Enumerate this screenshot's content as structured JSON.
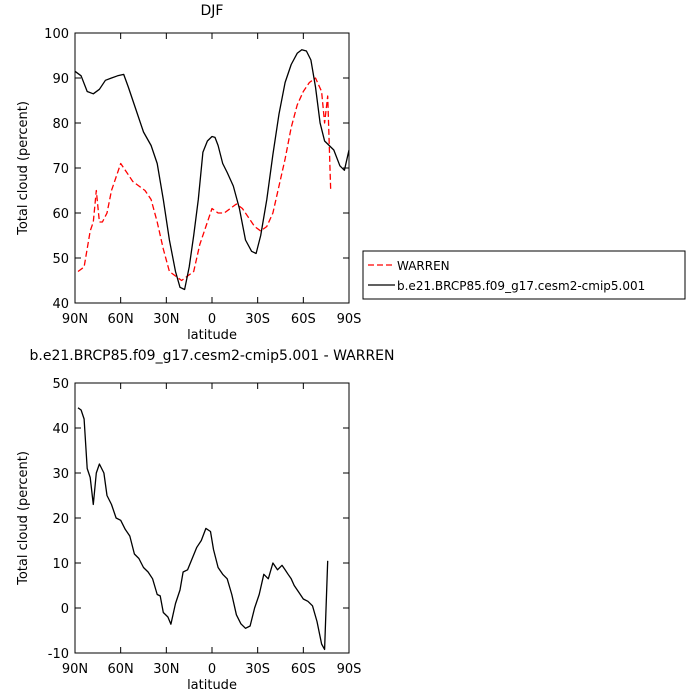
{
  "chart_data": [
    {
      "type": "line",
      "title": "DJF",
      "xlabel": "latitude",
      "ylabel": "Total cloud (percent)",
      "xlim": [
        90,
        -90
      ],
      "ylim": [
        40,
        100
      ],
      "xticks": [
        90,
        60,
        30,
        0,
        -30,
        -60,
        -90
      ],
      "xtick_labels": [
        "90N",
        "60N",
        "30N",
        "0",
        "30S",
        "60S",
        "90S"
      ],
      "yticks": [
        40,
        50,
        60,
        70,
        80,
        90,
        100
      ],
      "ytick_labels": [
        "40",
        "50",
        "60",
        "70",
        "80",
        "90",
        "100"
      ],
      "legend": "right",
      "grid": false,
      "series": [
        {
          "name": "WARREN",
          "color": "#ff0000",
          "dash": "dashed",
          "x": [
            88,
            84,
            80,
            78,
            76,
            74,
            72,
            69,
            66,
            63,
            60,
            56,
            52,
            48,
            44,
            40,
            36,
            32,
            28,
            24,
            20,
            16,
            12,
            8,
            4,
            0,
            -4,
            -8,
            -12,
            -16,
            -20,
            -24,
            -28,
            -32,
            -36,
            -40,
            -44,
            -48,
            -52,
            -56,
            -60,
            -64,
            -68,
            -72,
            -74,
            -76,
            -78
          ],
          "y": [
            47,
            48,
            56,
            58,
            65,
            58,
            58,
            60,
            65,
            68,
            71,
            69,
            67,
            66,
            65,
            63,
            58,
            52,
            47,
            46,
            45,
            46,
            47,
            53,
            57,
            61,
            60,
            60,
            61,
            62,
            61,
            59,
            57,
            56,
            57,
            60,
            66,
            72,
            79,
            84,
            87,
            89,
            90,
            87,
            80,
            86,
            65
          ]
        },
        {
          "name": "b.e21.BRCP85.f09_g17.cesm2-cmip5.001",
          "color": "#000000",
          "dash": "solid",
          "x": [
            90,
            86,
            82,
            78,
            74,
            70,
            66,
            62,
            58,
            55,
            50,
            45,
            40,
            36,
            32,
            28,
            24,
            21,
            18,
            15,
            12,
            9,
            6,
            3,
            0,
            -2,
            -4,
            -7,
            -10,
            -14,
            -18,
            -22,
            -26,
            -29,
            -32,
            -36,
            -40,
            -44,
            -48,
            -52,
            -56,
            -59,
            -62,
            -65,
            -68,
            -71,
            -74,
            -77,
            -80,
            -84,
            -87,
            -90
          ],
          "y": [
            91.5,
            90.5,
            87,
            86.5,
            87.5,
            89.5,
            90,
            90.5,
            90.8,
            88,
            83,
            78,
            75,
            71,
            63,
            54,
            47,
            43.5,
            43,
            48,
            55,
            63,
            73.5,
            76,
            77,
            76.8,
            75,
            71,
            69,
            66,
            61,
            54,
            51.5,
            51,
            55,
            63,
            73,
            82,
            89,
            93,
            95.5,
            96.3,
            96,
            94,
            88,
            80,
            76,
            75,
            74,
            70.5,
            69.5,
            74
          ]
        }
      ]
    },
    {
      "type": "line",
      "title": "b.e21.BRCP85.f09_g17.cesm2-cmip5.001 - WARREN",
      "xlabel": "latitude",
      "ylabel": "Total cloud (percent)",
      "xlim": [
        90,
        -90
      ],
      "ylim": [
        -10,
        50
      ],
      "xticks": [
        90,
        60,
        30,
        0,
        -30,
        -60,
        -90
      ],
      "xtick_labels": [
        "90N",
        "60N",
        "30N",
        "0",
        "30S",
        "60S",
        "90S"
      ],
      "yticks": [
        -10,
        0,
        10,
        20,
        30,
        40,
        50
      ],
      "ytick_labels": [
        "-10",
        "0",
        "10",
        "20",
        "30",
        "40",
        "50"
      ],
      "grid": false,
      "series": [
        {
          "color": "#000000",
          "dash": "solid",
          "x": [
            88,
            86,
            84,
            82,
            80,
            78,
            76,
            74,
            71,
            69,
            66,
            63,
            60,
            57,
            54,
            51,
            48,
            45,
            42,
            39,
            36,
            34,
            32,
            29,
            27,
            24,
            21,
            19,
            16,
            13,
            10,
            7,
            4,
            1,
            -1,
            -4,
            -7,
            -10,
            -13,
            -16,
            -19,
            -22,
            -25,
            -28,
            -31,
            -34,
            -37,
            -40,
            -43,
            -46,
            -48,
            -50,
            -52,
            -54,
            -57,
            -60,
            -63,
            -66,
            -69,
            -72,
            -74,
            -76
          ],
          "y": [
            44.5,
            44,
            42,
            31,
            29,
            23,
            30,
            32,
            30,
            25,
            23,
            20,
            19.5,
            17.5,
            16,
            12,
            11,
            9,
            8,
            6.5,
            3,
            2.7,
            -1,
            -2,
            -3.6,
            1,
            4,
            8,
            8.5,
            11,
            13.5,
            15,
            17.7,
            17,
            13,
            9,
            7.5,
            6.5,
            3,
            -1.5,
            -3.5,
            -4.5,
            -4,
            0,
            3,
            7.5,
            6.5,
            10,
            8.5,
            9.5,
            8.5,
            7.5,
            6.5,
            5,
            3.5,
            2,
            1.5,
            0.5,
            -3,
            -8,
            -9.2,
            10.5
          ]
        }
      ]
    }
  ]
}
